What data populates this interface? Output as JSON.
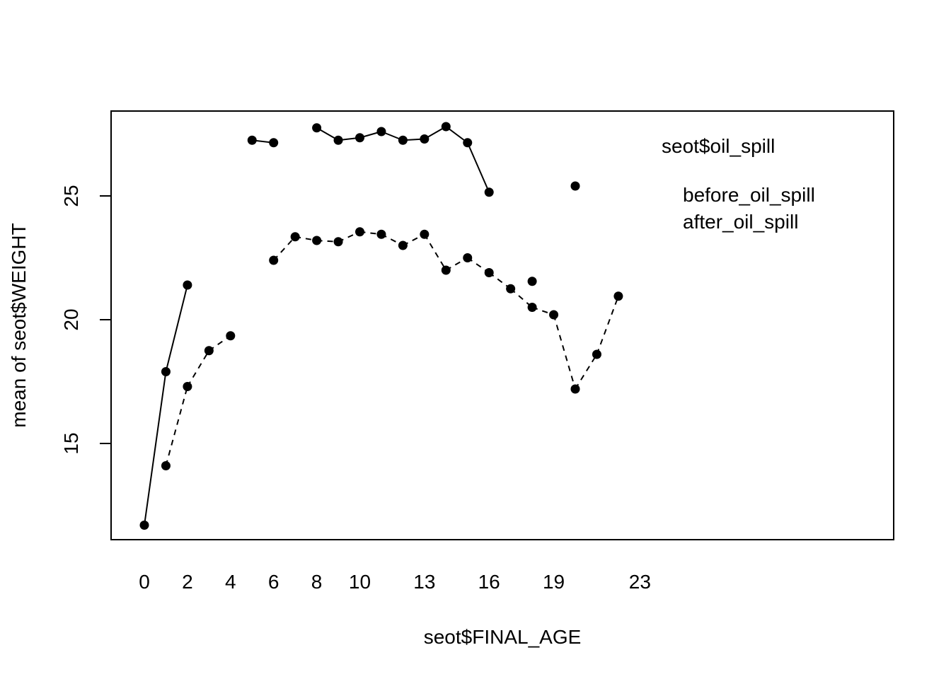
{
  "chart_data": {
    "type": "line",
    "title": "",
    "xlabel": "seot$FINAL_AGE",
    "ylabel": "mean of  seot$WEIGHT",
    "x_categories": [
      "0",
      "1",
      "2",
      "3",
      "4",
      "5",
      "6",
      "7",
      "8",
      "9",
      "10",
      "11",
      "12",
      "13",
      "14",
      "15",
      "16",
      "17",
      "18",
      "19",
      "20",
      "21",
      "22",
      "23"
    ],
    "x_tick_labels": [
      "0",
      "2",
      "4",
      "6",
      "8",
      "10",
      "13",
      "16",
      "19",
      "23"
    ],
    "y_ticks": [
      15,
      20,
      25
    ],
    "ylim": [
      11.7,
      27.6
    ],
    "legend": {
      "title": "seot$oil_spill",
      "placement": "top-right",
      "entries": [
        "before_oil_spill",
        "after_oil_spill"
      ]
    },
    "series": [
      {
        "name": "before_oil_spill",
        "line_style": "solid",
        "values": [
          11.7,
          17.9,
          21.4,
          null,
          null,
          27.25,
          27.15,
          null,
          27.75,
          27.25,
          27.35,
          27.6,
          27.25,
          27.3,
          27.8,
          27.15,
          25.15,
          null,
          21.55,
          null,
          25.4,
          null,
          null,
          null
        ]
      },
      {
        "name": "after_oil_spill",
        "line_style": "dashed",
        "values": [
          null,
          14.1,
          17.3,
          18.75,
          19.35,
          null,
          22.4,
          23.35,
          23.2,
          23.15,
          23.55,
          23.45,
          23.0,
          23.45,
          22.0,
          22.5,
          21.9,
          21.25,
          20.5,
          20.2,
          17.2,
          18.6,
          20.95,
          null
        ]
      }
    ],
    "grid": false
  }
}
